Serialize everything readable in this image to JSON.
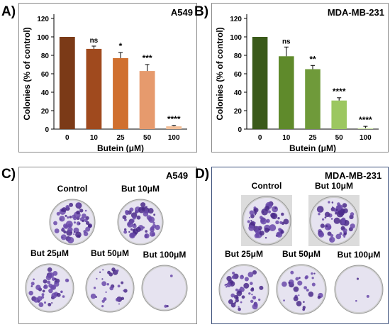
{
  "panels": {
    "A": {
      "letter": "A)",
      "cell_line": "A549"
    },
    "B": {
      "letter": "B)",
      "cell_line": "MDA-MB-231"
    },
    "C": {
      "letter": "C)",
      "cell_line": "A549"
    },
    "D": {
      "letter": "D)",
      "cell_line": "MDA-MB-231"
    }
  },
  "chart_data": [
    {
      "type": "bar",
      "title": "A549",
      "xlabel": "Butein (μM)",
      "ylabel": "Colonies (% of control)",
      "categories": [
        "0",
        "10",
        "25",
        "50",
        "100"
      ],
      "values": [
        100,
        87,
        77,
        63,
        3
      ],
      "errors": [
        0,
        3,
        6,
        7,
        1
      ],
      "significance": [
        "",
        "ns",
        "*",
        "***",
        "****"
      ],
      "ylim": [
        0,
        120
      ],
      "yticks": [
        0,
        20,
        40,
        60,
        80,
        100,
        120
      ],
      "colors": [
        "#7b3a17",
        "#a04a1e",
        "#d0702f",
        "#e69a6d",
        "#f2be98"
      ]
    },
    {
      "type": "bar",
      "title": "MDA-MB-231",
      "xlabel": "Butein (μM)",
      "ylabel": "Colonies (% of control)",
      "categories": [
        "0",
        "10",
        "25",
        "50",
        "100"
      ],
      "values": [
        100,
        79,
        65,
        31,
        1
      ],
      "errors": [
        0,
        10,
        4,
        3,
        2
      ],
      "significance": [
        "",
        "ns",
        "**",
        "****",
        "****"
      ],
      "ylim": [
        0,
        120
      ],
      "yticks": [
        0,
        20,
        40,
        60,
        80,
        100,
        120
      ],
      "colors": [
        "#3a5a1a",
        "#5f8a2b",
        "#6f9a3a",
        "#9cc760",
        "#c8e0a0"
      ]
    }
  ],
  "dishes": {
    "C": [
      {
        "label": "Control"
      },
      {
        "label": "But 10μM"
      },
      {
        "label": "But 25μM"
      },
      {
        "label": "But 50μM"
      },
      {
        "label": "But 100μM"
      }
    ],
    "D": [
      {
        "label": "Control"
      },
      {
        "label": "But 10μM"
      },
      {
        "label": "But 25μM"
      },
      {
        "label": "But 50μM"
      },
      {
        "label": "But 100μM"
      }
    ]
  }
}
